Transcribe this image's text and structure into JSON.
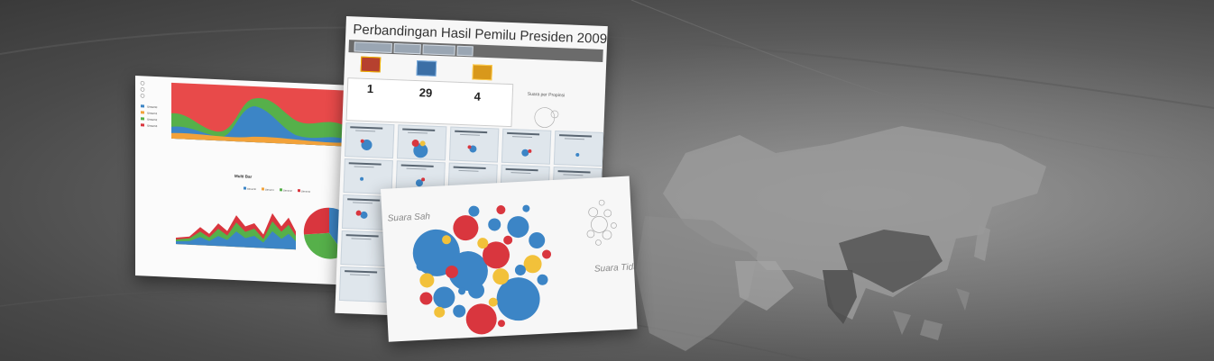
{
  "left_card": {
    "legend_top": [
      "Stream0",
      "Stream1",
      "Stream2",
      "Stream3"
    ],
    "chart_title": "Multi Bar",
    "legend_bottom": [
      "Stream0",
      "Stream1",
      "Stream2",
      "Stream3"
    ]
  },
  "mid_card": {
    "title": "Perbandingan Hasil Pemilu Presiden 2009",
    "stats": [
      "1",
      "29",
      "4"
    ],
    "side_label": "Suara per Propinsi"
  },
  "front_card": {
    "label_valid": "Suara Sah",
    "label_invalid": "Suara Tidak Sah"
  },
  "colors": {
    "red": "#d9363e",
    "blue": "#3c85c6",
    "yellow": "#f2c13a",
    "green": "#56b04a"
  }
}
